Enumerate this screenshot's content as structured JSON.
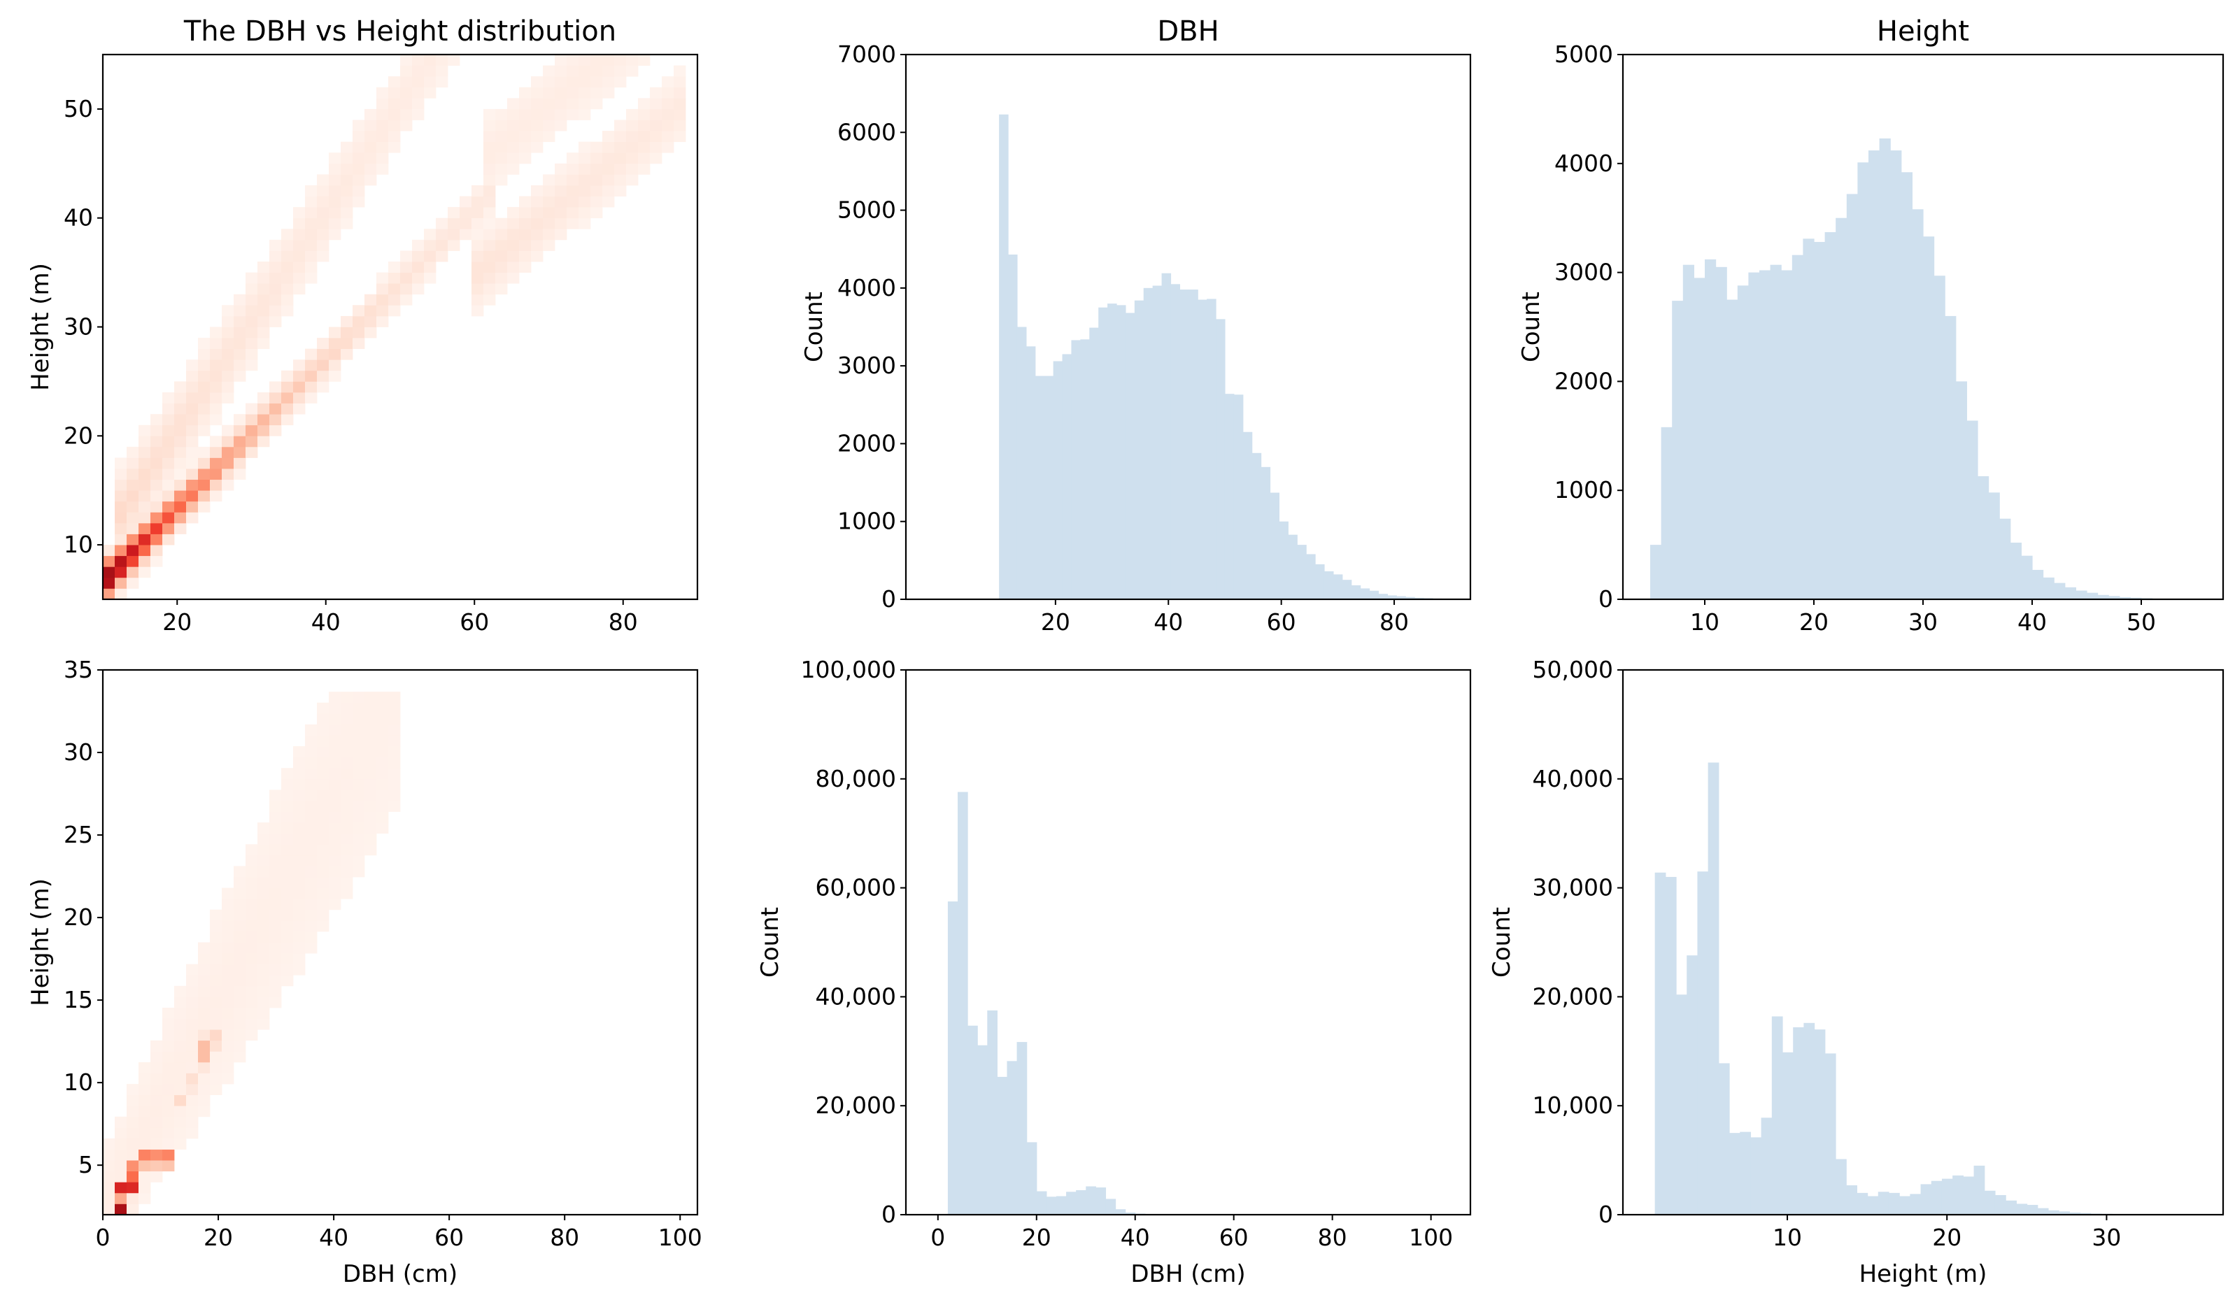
{
  "chart_data": [
    {
      "type": "heatmap",
      "title": "The DBH vs Height distribution",
      "xlabel": "",
      "ylabel": "Height (m)",
      "xlim": [
        10,
        90
      ],
      "ylim": [
        5,
        55
      ],
      "xticks": [
        "20",
        "40",
        "60",
        "80"
      ],
      "yticks": [
        "10",
        "20",
        "30",
        "40",
        "50"
      ],
      "colormap": "Reds",
      "bins": 50,
      "bands": [
        {
          "x0": 10,
          "y0": 6.5,
          "slope": 0.685,
          "width": 1.5,
          "x1": 62,
          "peak": 1.0,
          "decay": 0.07,
          "floor": 0.05
        },
        {
          "x0": 60,
          "y0": 34.7,
          "slope": 0.56,
          "width": 2.6,
          "x1": 88,
          "peak": 0.1,
          "decay": 0.03,
          "floor": 0.04
        },
        {
          "x0": 12,
          "y0": 12.5,
          "slope": 1.0,
          "width": 3.0,
          "x1": 62,
          "peak": 0.15,
          "decay": 0.04,
          "floor": 0.03
        },
        {
          "x0": 62,
          "y0": 46.0,
          "slope": 0.55,
          "width": 3.0,
          "x1": 90,
          "peak": 0.05,
          "decay": 0.0,
          "floor": 0.04
        }
      ]
    },
    {
      "type": "bar",
      "title": "DBH",
      "xlabel": "",
      "ylabel": "Count",
      "xlim": [
        -6.5,
        93.5
      ],
      "ylim": [
        0,
        7000
      ],
      "xticks": [
        "20",
        "40",
        "60",
        "80"
      ],
      "yticks": [
        "0",
        "1000",
        "2000",
        "3000",
        "4000",
        "5000",
        "6000",
        "7000"
      ],
      "bin_start": 10,
      "bin_width": 1.6,
      "values": [
        6230,
        4430,
        3500,
        3250,
        2870,
        2870,
        3060,
        3150,
        3330,
        3340,
        3490,
        3750,
        3800,
        3780,
        3680,
        3840,
        4000,
        4030,
        4190,
        4050,
        3980,
        3980,
        3850,
        3860,
        3600,
        2640,
        2630,
        2150,
        1880,
        1700,
        1370,
        1000,
        830,
        700,
        580,
        450,
        360,
        320,
        250,
        180,
        140,
        110,
        70,
        50,
        40,
        30,
        20,
        15,
        10,
        5
      ]
    },
    {
      "type": "bar",
      "title": "Height",
      "xlabel": "",
      "ylabel": "Count",
      "xlim": [
        2.5,
        57.5
      ],
      "ylim": [
        0,
        5000
      ],
      "xticks": [
        "10",
        "20",
        "30",
        "40",
        "50"
      ],
      "yticks": [
        "0",
        "1000",
        "2000",
        "3000",
        "4000",
        "5000"
      ],
      "bin_start": 5,
      "bin_width": 1.0,
      "values": [
        500,
        1580,
        2740,
        3070,
        2950,
        3120,
        3050,
        2750,
        2880,
        3000,
        3020,
        3070,
        3020,
        3160,
        3310,
        3280,
        3370,
        3500,
        3720,
        4010,
        4120,
        4230,
        4120,
        3920,
        3580,
        3330,
        2970,
        2600,
        2000,
        1640,
        1130,
        980,
        740,
        520,
        400,
        270,
        200,
        150,
        110,
        80,
        60,
        40,
        30,
        20,
        15,
        10
      ]
    },
    {
      "type": "heatmap",
      "title": "",
      "xlabel": "DBH (cm)",
      "ylabel": "Height (m)",
      "xlim": [
        0,
        103
      ],
      "ylim": [
        2,
        35
      ],
      "xticks": [
        "0",
        "20",
        "40",
        "60",
        "80",
        "100"
      ],
      "yticks": [
        "5",
        "10",
        "15",
        "20",
        "25",
        "30",
        "35"
      ],
      "colormap": "Reds",
      "bins": 50,
      "cluster_points": [
        [
          3.2,
          2.5,
          1.0
        ],
        [
          3.2,
          3.5,
          0.8
        ],
        [
          5.2,
          4.6,
          0.75
        ],
        [
          5.2,
          3.7,
          0.7
        ],
        [
          7.2,
          5.4,
          0.55
        ],
        [
          9.2,
          5.4,
          0.5
        ],
        [
          11.2,
          5.4,
          0.55
        ],
        [
          17.2,
          11.4,
          0.3
        ],
        [
          17.2,
          12.4,
          0.3
        ],
        [
          19.2,
          12.6,
          0.25
        ],
        [
          15.2,
          10.0,
          0.18
        ],
        [
          13.2,
          9.0,
          0.15
        ]
      ]
    },
    {
      "type": "bar",
      "title": "",
      "xlabel": "DBH (cm)",
      "ylabel": "Count",
      "xlim": [
        -6.5,
        108
      ],
      "ylim": [
        0,
        100000
      ],
      "xticks": [
        "0",
        "20",
        "40",
        "60",
        "80",
        "100"
      ],
      "yticks": [
        "0",
        "20,000",
        "40,000",
        "60,000",
        "80,000",
        "100,000"
      ],
      "bin_start": 2,
      "bin_width": 2.0,
      "values": [
        57500,
        77600,
        34700,
        31100,
        37500,
        25300,
        28200,
        31700,
        13300,
        4300,
        3300,
        3400,
        4200,
        4500,
        5200,
        5000,
        2900,
        1000,
        400,
        200,
        100,
        60,
        40,
        30,
        20,
        15,
        10,
        10,
        5,
        5,
        5,
        5,
        5,
        5,
        5,
        5,
        5,
        5,
        5,
        5,
        5,
        5,
        5,
        5,
        5,
        5,
        5,
        5,
        5,
        5
      ]
    },
    {
      "type": "bar",
      "title": "",
      "xlabel": "Height (m)",
      "ylabel": "Count",
      "xlim": [
        -0.3,
        37.3
      ],
      "ylim": [
        0,
        50000
      ],
      "xticks": [
        "10",
        "20",
        "30"
      ],
      "yticks": [
        "0",
        "10,000",
        "20,000",
        "30,000",
        "40,000",
        "50,000"
      ],
      "bin_start": 1.7,
      "bin_width": 0.666,
      "values": [
        31400,
        31000,
        20200,
        23800,
        31500,
        41500,
        13900,
        7500,
        7600,
        7100,
        8900,
        18200,
        14900,
        17200,
        17600,
        17000,
        14800,
        5100,
        2700,
        2000,
        1700,
        2100,
        2000,
        1700,
        1900,
        2800,
        3100,
        3300,
        3600,
        3500,
        4500,
        2200,
        1800,
        1300,
        1000,
        900,
        600,
        400,
        300,
        200,
        150,
        100,
        80,
        60,
        40,
        30,
        20,
        10,
        5,
        5
      ]
    }
  ]
}
